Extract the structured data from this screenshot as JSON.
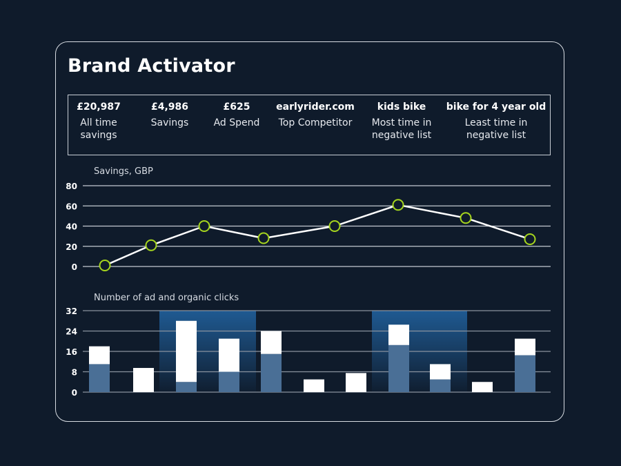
{
  "title": "Brand Activator",
  "stats": [
    {
      "value": "£20,987",
      "label": "All time\nsavings"
    },
    {
      "value": "£4,986",
      "label": "Savings"
    },
    {
      "value": "£625",
      "label": "Ad Spend"
    },
    {
      "value": "earlyrider.com",
      "label": "Top Competitor"
    },
    {
      "value": "kids bike",
      "label": "Most time in\nnegative list"
    },
    {
      "value": "bike for 4 year old",
      "label": "Least time in\nnegative list"
    }
  ],
  "colors": {
    "background": "#0f1b2b",
    "line": "#ffffff",
    "marker": "#a6d51e",
    "bar_ad": "#4a6f96",
    "bar_organic": "#ffffff",
    "highlight": "#1f5a92"
  },
  "chart_data": [
    {
      "type": "line",
      "title": "Savings, GBP",
      "ylim": [
        0,
        80
      ],
      "yticks": [
        0,
        20,
        40,
        60,
        80
      ],
      "grid": true,
      "values": [
        1,
        21,
        40,
        28,
        40,
        61,
        48,
        27
      ]
    },
    {
      "type": "bar",
      "stacked": true,
      "title": "Number of ad and organic clicks",
      "ylim": [
        0,
        32
      ],
      "yticks": [
        0,
        8,
        16,
        24,
        32
      ],
      "grid": true,
      "series": [
        {
          "values": [
            11,
            0,
            4,
            8,
            15,
            0,
            0,
            18.5,
            5,
            0,
            14.5
          ]
        },
        {
          "values": [
            7,
            9.5,
            24,
            13,
            9,
            5,
            7.5,
            8,
            6,
            4,
            6.5
          ]
        }
      ],
      "highlighted_bars": [
        [
          2,
          3
        ],
        [
          7,
          8
        ]
      ]
    }
  ]
}
